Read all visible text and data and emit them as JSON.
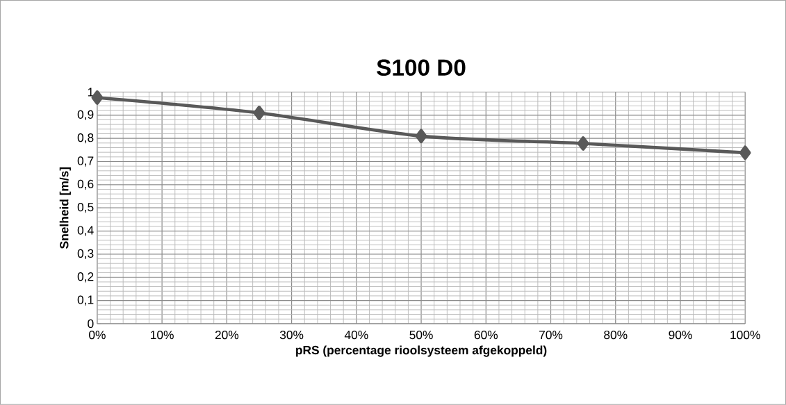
{
  "chart_data": {
    "type": "line",
    "title": "S100 D0",
    "xlabel": "pRS (percentage rioolsysteem afgekoppeld)",
    "ylabel": "Snelheid [m/s]",
    "x": [
      0,
      25,
      50,
      75,
      100
    ],
    "series": [
      {
        "color": "#595959",
        "values": [
          0.976,
          0.91,
          0.81,
          0.778,
          0.738
        ]
      }
    ],
    "xlim": [
      0,
      100
    ],
    "ylim": [
      0,
      1
    ],
    "xticks": [
      {
        "value": 0,
        "label": "0%"
      },
      {
        "value": 10,
        "label": "10%"
      },
      {
        "value": 20,
        "label": "20%"
      },
      {
        "value": 30,
        "label": "30%"
      },
      {
        "value": 40,
        "label": "40%"
      },
      {
        "value": 50,
        "label": "50%"
      },
      {
        "value": 60,
        "label": "60%"
      },
      {
        "value": 70,
        "label": "70%"
      },
      {
        "value": 80,
        "label": "80%"
      },
      {
        "value": 90,
        "label": "90%"
      },
      {
        "value": 100,
        "label": "100%"
      }
    ],
    "yticks": [
      0,
      {
        "value": 0.1,
        "label": "0,1"
      },
      {
        "value": 0.2,
        "label": "0,2"
      },
      {
        "value": 0.3,
        "label": "0,3"
      },
      {
        "value": 0.4,
        "label": "0,4"
      },
      {
        "value": 0.5,
        "label": "0,5"
      },
      {
        "value": 0.6,
        "label": "0,6"
      },
      {
        "value": 0.7,
        "label": "0,7"
      },
      {
        "value": 0.8,
        "label": "0,8"
      },
      {
        "value": 0.9,
        "label": "0,9"
      },
      1
    ],
    "grid": true,
    "marker": "diamond",
    "line_style": "solid"
  }
}
